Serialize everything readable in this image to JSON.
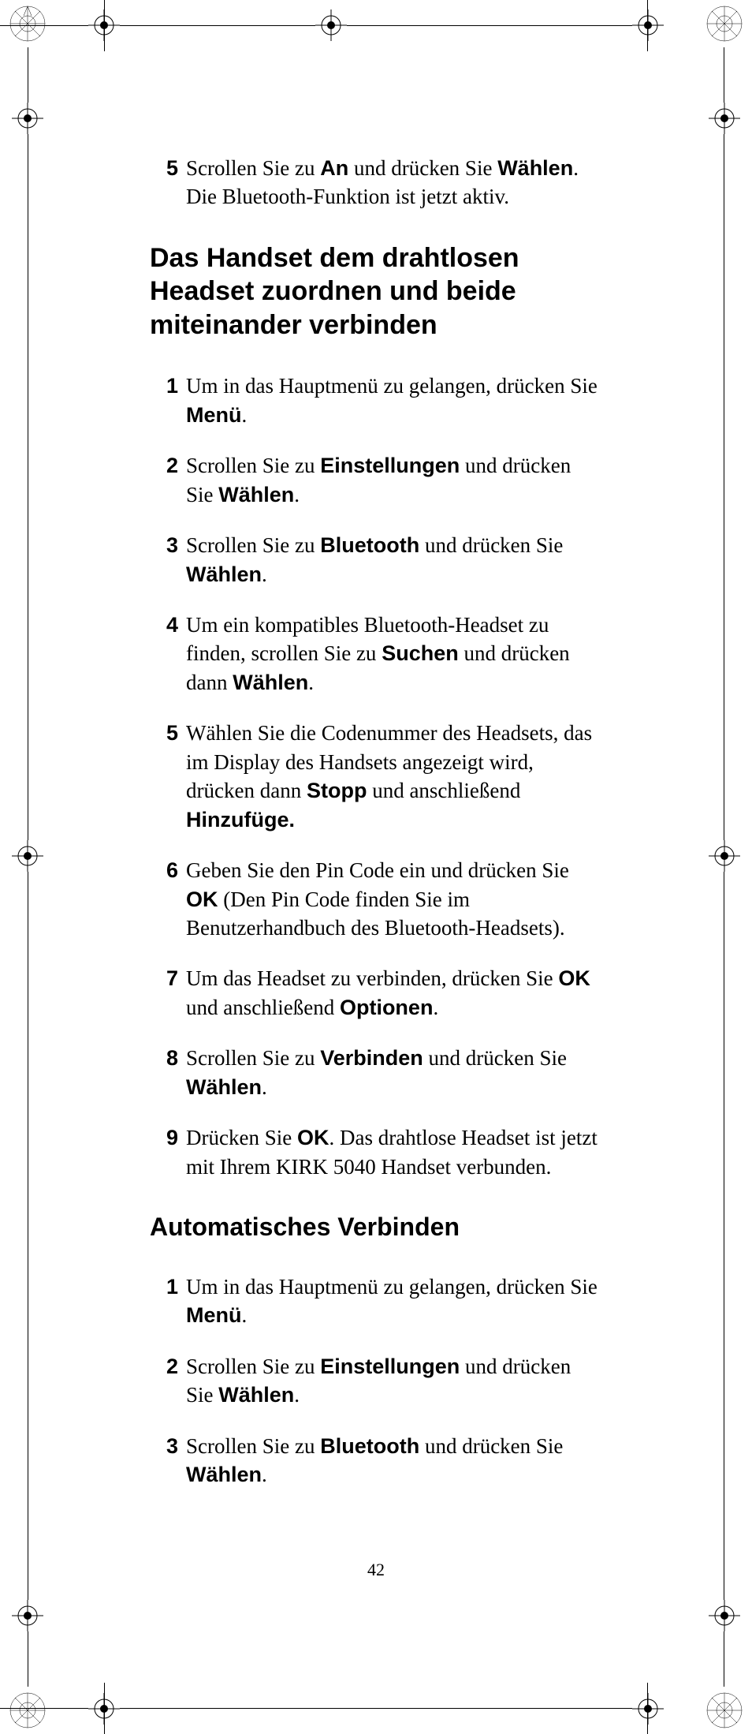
{
  "page_number": "42",
  "intro_step": {
    "num": "5",
    "parts": [
      "Scrollen Sie zu ",
      "An",
      " und drücken Sie ",
      "Wählen",
      ". Die Bluetooth-Funktion ist jetzt aktiv."
    ]
  },
  "heading1": "Das Handset dem drahtlosen Headset zuordnen und beide miteinander verbinden",
  "steps1": [
    {
      "num": "1",
      "parts": [
        "Um in das Hauptmenü zu gelangen, drücken Sie ",
        "Menü",
        "."
      ]
    },
    {
      "num": "2",
      "parts": [
        "Scrollen Sie zu ",
        "Einstellungen",
        " und drücken Sie ",
        "Wählen",
        "."
      ]
    },
    {
      "num": "3",
      "parts": [
        "Scrollen Sie zu ",
        "Bluetooth",
        " und drücken Sie ",
        "Wählen",
        "."
      ]
    },
    {
      "num": "4",
      "parts": [
        "Um ein kompatibles Bluetooth-Headset zu finden, scrollen Sie zu ",
        "Suchen",
        " und drücken dann ",
        "Wählen",
        "."
      ]
    },
    {
      "num": "5",
      "parts": [
        "Wählen Sie die Codenummer des Headsets, das im Display des Handsets angezeigt wird, drücken dann ",
        "Stopp",
        " und anschließend ",
        "Hinzufüge.",
        ""
      ]
    },
    {
      "num": "6",
      "parts": [
        "Geben Sie den Pin Code ein und drücken Sie ",
        "OK",
        " (Den Pin Code finden Sie im Benutzerhandbuch des Bluetooth-Headsets)."
      ]
    },
    {
      "num": "7",
      "parts": [
        "Um das Headset zu verbinden, drücken Sie ",
        "OK",
        " und anschließend ",
        "Optionen",
        "."
      ]
    },
    {
      "num": "8",
      "parts": [
        "Scrollen Sie zu ",
        "Verbinden",
        " und drücken Sie ",
        "Wählen",
        "."
      ]
    },
    {
      "num": "9",
      "parts": [
        "Drücken Sie ",
        "OK",
        ". Das drahtlose Headset ist jetzt mit Ihrem KIRK 5040 Handset verbunden."
      ]
    }
  ],
  "heading2": "Automatisches Verbinden",
  "steps2": [
    {
      "num": "1",
      "parts": [
        "Um in das Hauptmenü zu gelangen, drücken Sie ",
        "Menü",
        "."
      ]
    },
    {
      "num": "2",
      "parts": [
        "Scrollen Sie zu ",
        "Einstellungen",
        " und drücken Sie ",
        "Wählen",
        "."
      ]
    },
    {
      "num": "3",
      "parts": [
        "Scrollen Sie zu ",
        "Bluetooth",
        " und drücken Sie ",
        "Wählen",
        "."
      ]
    }
  ],
  "colors": {
    "text": "#000000",
    "background": "#ffffff"
  }
}
